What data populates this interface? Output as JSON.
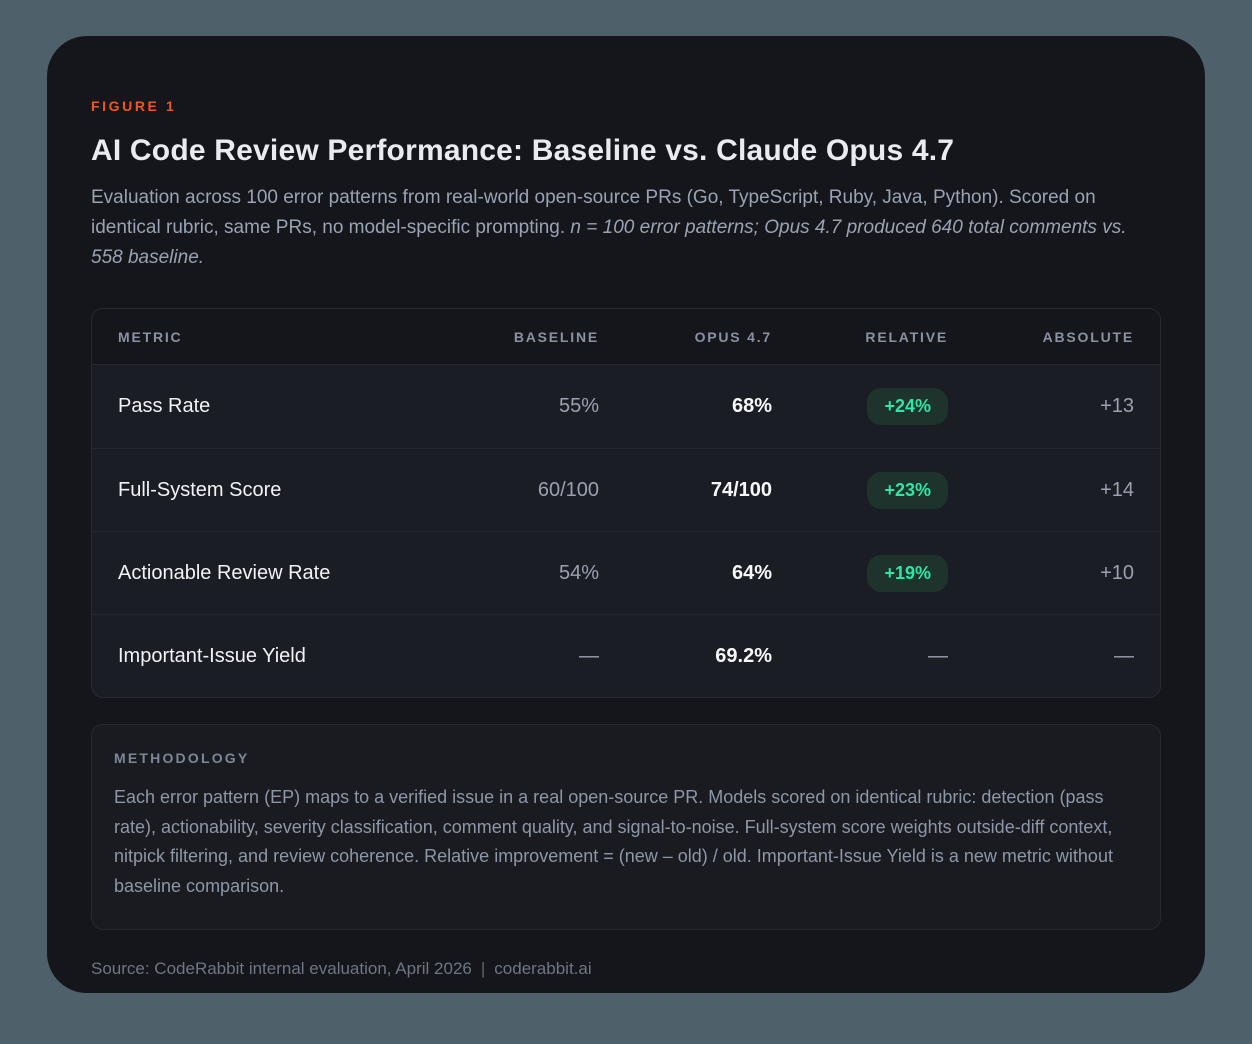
{
  "figure_label": "FIGURE 1",
  "title": "AI Code Review Performance: Baseline vs. Claude Opus 4.7",
  "subtitle": {
    "normal": "Evaluation across 100 error patterns from real-world open-source PRs (Go, TypeScript, Ruby, Java, Python). Scored on identical rubric, same PRs, no model-specific prompting. ",
    "italic": "n = 100 error patterns; Opus 4.7 produced 640 total comments vs. 558 baseline."
  },
  "table": {
    "headers": [
      "METRIC",
      "BASELINE",
      "OPUS 4.7",
      "RELATIVE",
      "ABSOLUTE"
    ],
    "rows": [
      {
        "metric": "Pass Rate",
        "baseline": "55%",
        "opus": "68%",
        "relative": "+24%",
        "absolute": "+13"
      },
      {
        "metric": "Full-System Score",
        "baseline": "60/100",
        "opus": "74/100",
        "relative": "+23%",
        "absolute": "+14"
      },
      {
        "metric": "Actionable Review Rate",
        "baseline": "54%",
        "opus": "64%",
        "relative": "+19%",
        "absolute": "+10"
      },
      {
        "metric": "Important-Issue Yield",
        "baseline": "—",
        "opus": "69.2%",
        "relative": "—",
        "absolute": "—"
      }
    ]
  },
  "methodology": {
    "heading": "METHODOLOGY",
    "text": "Each error pattern (EP) maps to a verified issue in a real open-source PR. Models scored on identical rubric: detection (pass rate), actionability, severity classification, comment quality, and signal-to-noise. Full-system score weights outside-diff context, nitpick filtering, and review coherence. Relative improvement = (new – old) / old. Important-Issue Yield is a new metric without baseline comparison."
  },
  "source": {
    "text": "Source: CodeRabbit internal evaluation, April 2026",
    "separator": "|",
    "site": "coderabbit.ai"
  },
  "colors": {
    "accent_orange": "#f0571f",
    "positive_green": "#2ee6a5",
    "badge_bg": "#1d332b",
    "card_bg": "#15161b",
    "outer_bg": "#4e616b"
  },
  "chart_data": {
    "type": "table",
    "title": "AI Code Review Performance: Baseline vs. Claude Opus 4.7",
    "columns": [
      "Metric",
      "Baseline",
      "Opus 4.7",
      "Relative",
      "Absolute"
    ],
    "rows": [
      [
        "Pass Rate",
        "55%",
        "68%",
        "+24%",
        "+13"
      ],
      [
        "Full-System Score",
        "60/100",
        "74/100",
        "+23%",
        "+14"
      ],
      [
        "Actionable Review Rate",
        "54%",
        "64%",
        "+19%",
        "+10"
      ],
      [
        "Important-Issue Yield",
        "—",
        "69.2%",
        "—",
        "—"
      ]
    ],
    "notes": "n = 100 error patterns; Opus 4.7 produced 640 total comments vs. 558 baseline."
  }
}
